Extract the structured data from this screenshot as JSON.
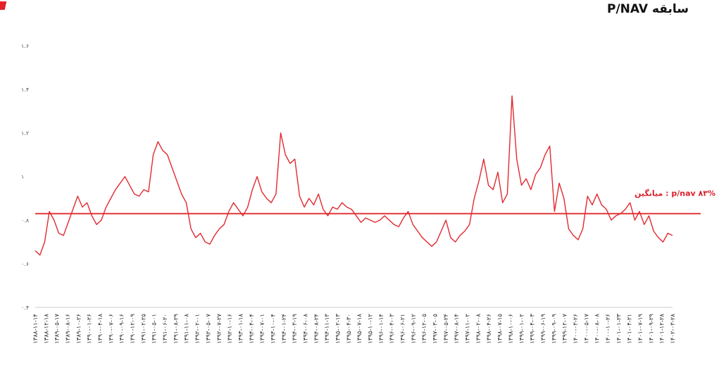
{
  "title": "سابقه P/NAV",
  "chart_data": {
    "type": "line",
    "title": "سابقه P/NAV",
    "xlabel": "",
    "ylabel": "",
    "ylim": [
      0.4,
      1.6
    ],
    "y_ticks": [
      "۰.۴",
      "۰.۶",
      "۰.۸",
      "۱",
      "۱.۲",
      "۱.۴",
      "۱.۶"
    ],
    "y_tick_values": [
      0.4,
      0.6,
      0.8,
      1.0,
      1.2,
      1.4,
      1.6
    ],
    "grid": false,
    "line_color": "#e02a2f",
    "average": {
      "value": 0.83,
      "label": "میانگین  :  p/nav ۸۳%",
      "color": "#e02a2f"
    },
    "x_labels": [
      "۱۳۸۸-۱۱-۱۴",
      "۱۳۸۸-۱۲-۱۸",
      "۱۳۸۹-۰۵-۱۷",
      "۱۳۸۹-۰۸-۱۶",
      "۱۳۸۹-۱۰-۲۶",
      "۱۳۹۰-۰۱-۲۶",
      "۱۳۹۰-۰۴-۱۸",
      "۱۳۹۰-۰۷-۰۶",
      "۱۳۹۰-۰۹-۱۶",
      "۱۳۹۰-۱۲-۰۹",
      "۱۳۹۱-۰۲-۲۵",
      "۱۳۹۱-۰۵-۰۱",
      "۱۳۹۱-۰۶-۲۰",
      "۱۳۹۱-۰۸-۲۹",
      "۱۳۹۱-۱۱-۰۸",
      "۱۳۹۲-۰۲-۰۱",
      "۱۳۹۲-۰۵-۰۷",
      "۱۳۹۲-۰۷-۲۷",
      "۱۳۹۲-۱۰-۱۶",
      "۱۳۹۳-۰۱-۱۸",
      "۱۳۹۳-۰۴-۰۴",
      "۱۳۹۳-۰۷-۰۱",
      "۱۳۹۳-۱۰-۰۴",
      "۱۳۹۴-۰۱-۲۴",
      "۱۳۹۴-۰۳-۱۹",
      "۱۳۹۴-۰۶-۰۸",
      "۱۳۹۴-۰۸-۲۴",
      "۱۳۹۴-۱۱-۱۳",
      "۱۳۹۵-۰۲-۱۳",
      "۱۳۹۵-۰۴-۳۰",
      "۱۳۹۵-۰۷-۱۸",
      "۱۳۹۵-۱۰-۱۲",
      "۱۳۹۶-۰۱-۱۴",
      "۱۳۹۶-۰۴-۰۳",
      "۱۳۹۶-۰۶-۲۱",
      "۱۳۹۶-۰۹-۱۲",
      "۱۳۹۶-۱۲-۰۵",
      "۱۳۹۷-۰۳-۰۵",
      "۱۳۹۷-۰۵-۲۴",
      "۱۳۹۷-۰۸-۱۴",
      "۱۳۹۷-۱۱-۰۲",
      "۱۳۹۸-۰۲-۰۸",
      "۱۳۹۸-۰۴-۲۶",
      "۱۳۹۸-۰۷-۱۵",
      "۱۳۹۸-۱۰-۰۶",
      "۱۳۹۹-۰۱-۰۲",
      "۱۳۹۹-۰۴-۰۳",
      "۱۳۹۹-۰۶-۱۹",
      "۱۳۹۹-۰۹-۰۹",
      "۱۳۹۹-۱۲-۰۷",
      "۱۴۰۰-۰۳-۲۶",
      "۱۴۰۰-۰۵-۱۷",
      "۱۴۰۰-۰۸-۰۸",
      "۱۴۰۰-۱۰-۲۶",
      "۱۴۰۱-۰۱-۲۳",
      "۱۴۰۱-۰۴-۲۱",
      "۱۴۰۱-۰۷-۱۹",
      "۱۴۰۱-۰۹-۲۹",
      "۱۴۰۱-۱۲-۲۸",
      "۱۴۰۲-۰۳-۲۸"
    ],
    "series": [
      {
        "values": [
          0.66,
          0.64,
          0.7,
          0.84,
          0.8,
          0.74,
          0.73,
          0.79,
          0.85,
          0.91,
          0.86,
          0.88,
          0.82,
          0.78,
          0.8,
          0.86,
          0.9,
          0.94,
          0.97,
          1.0,
          0.96,
          0.92,
          0.91,
          0.94,
          0.93,
          1.1,
          1.16,
          1.12,
          1.1,
          1.04,
          0.98,
          0.92,
          0.88,
          0.76,
          0.72,
          0.74,
          0.7,
          0.69,
          0.73,
          0.76,
          0.78,
          0.84,
          0.88,
          0.85,
          0.82,
          0.86,
          0.94,
          1.0,
          0.93,
          0.9,
          0.88,
          0.92,
          1.2,
          1.1,
          1.06,
          1.08,
          0.91,
          0.86,
          0.9,
          0.87,
          0.92,
          0.85,
          0.82,
          0.86,
          0.85,
          0.88,
          0.86,
          0.85,
          0.82,
          0.79,
          0.81,
          0.8,
          0.79,
          0.8,
          0.82,
          0.8,
          0.78,
          0.77,
          0.81,
          0.84,
          0.78,
          0.75,
          0.72,
          0.7,
          0.68,
          0.7,
          0.75,
          0.8,
          0.72,
          0.7,
          0.73,
          0.75,
          0.78,
          0.9,
          0.98,
          1.08,
          0.96,
          0.94,
          1.02,
          0.88,
          0.92,
          1.37,
          1.08,
          0.96,
          0.99,
          0.94,
          1.01,
          1.04,
          1.1,
          1.14,
          0.84,
          0.97,
          0.9,
          0.76,
          0.73,
          0.71,
          0.76,
          0.91,
          0.87,
          0.92,
          0.87,
          0.85,
          0.8,
          0.82,
          0.83,
          0.85,
          0.88,
          0.8,
          0.84,
          0.78,
          0.82,
          0.75,
          0.72,
          0.7,
          0.74,
          0.73
        ]
      }
    ]
  }
}
